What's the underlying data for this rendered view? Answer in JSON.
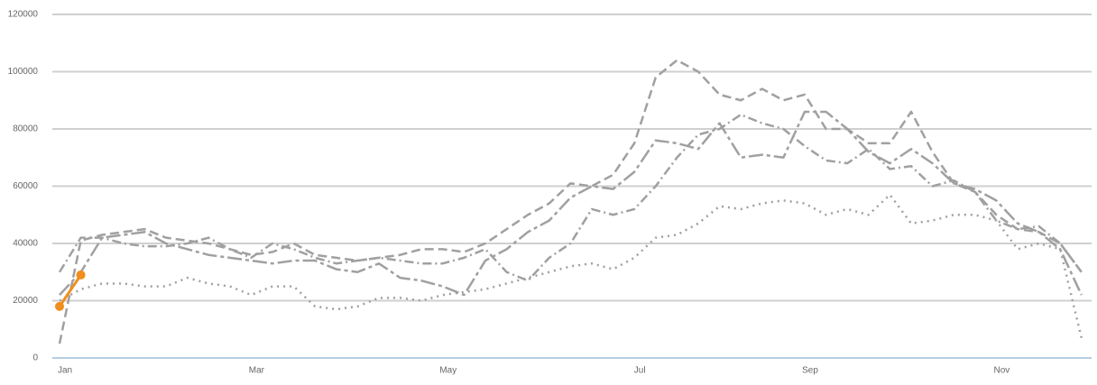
{
  "chart_data": {
    "type": "line",
    "categories": [
      "Jan",
      null,
      null,
      null,
      null,
      null,
      null,
      null,
      null,
      "Mar",
      null,
      null,
      null,
      null,
      null,
      null,
      null,
      null,
      "May",
      null,
      null,
      null,
      null,
      null,
      null,
      null,
      null,
      "Jul",
      null,
      null,
      null,
      null,
      null,
      null,
      null,
      "Sep",
      null,
      null,
      null,
      null,
      null,
      null,
      null,
      null,
      "Nov",
      null,
      null,
      null,
      null
    ],
    "series": [
      {
        "color": "#a0a0a0",
        "dash": "10 5",
        "values": [
          5000,
          41000,
          43000,
          44000,
          45000,
          42000,
          41000,
          40000,
          38000,
          36000,
          37000,
          40000,
          36000,
          35000,
          34000,
          35000,
          36000,
          38000,
          38000,
          37000,
          40000,
          45000,
          50000,
          54000,
          61000,
          60000,
          64000,
          75000,
          98000,
          104000,
          100000,
          92000,
          90000,
          94000,
          90000,
          92000,
          80000,
          80000,
          75000,
          75000,
          86000,
          72000,
          61000,
          58000,
          50000,
          45000,
          44000,
          40000,
          30000
        ]
      },
      {
        "color": "#a0a0a0",
        "dash": "10 4 2 4",
        "values": [
          30000,
          42000,
          42000,
          40000,
          39000,
          39000,
          40000,
          42000,
          38000,
          35000,
          40000,
          38000,
          35000,
          33000,
          34000,
          35000,
          34000,
          33000,
          33000,
          35000,
          38000,
          30000,
          27000,
          35000,
          40000,
          52000,
          50000,
          52000,
          60000,
          70000,
          78000,
          80000,
          85000,
          82000,
          80000,
          74000,
          69000,
          68000,
          73000,
          66000,
          67000,
          60000,
          62000,
          58000,
          48000,
          45000,
          46000,
          40000,
          30000
        ]
      },
      {
        "color": "#a0a0a0",
        "dash": "16 4 4 4",
        "values": [
          22000,
          30000,
          42000,
          43000,
          44000,
          40000,
          38000,
          36000,
          35000,
          34000,
          33000,
          34000,
          34000,
          31000,
          30000,
          33000,
          28000,
          27000,
          25000,
          22000,
          34000,
          38000,
          44000,
          48000,
          56000,
          60000,
          59000,
          65000,
          76000,
          75000,
          73000,
          82000,
          70000,
          71000,
          70000,
          86000,
          86000,
          80000,
          72000,
          68000,
          73000,
          68000,
          61000,
          59000,
          55000,
          47000,
          44000,
          38000,
          22000
        ]
      },
      {
        "color": "#a0a0a0",
        "dash": "2 5",
        "values": [
          20000,
          24000,
          26000,
          26000,
          25000,
          25000,
          28000,
          26000,
          25000,
          22000,
          25000,
          25000,
          18000,
          17000,
          18000,
          21000,
          21000,
          20000,
          22000,
          23000,
          24000,
          26000,
          28000,
          30000,
          32000,
          33000,
          31000,
          35000,
          42000,
          43000,
          47000,
          53000,
          52000,
          54000,
          55000,
          54000,
          50000,
          52000,
          50000,
          57000,
          47000,
          48000,
          50000,
          50000,
          48000,
          38000,
          40000,
          38000,
          7000
        ]
      },
      {
        "color": "#f28e1c",
        "markers": true,
        "values": [
          18000,
          29000,
          null,
          null,
          null,
          null,
          null,
          null,
          null,
          null,
          null,
          null,
          null,
          null,
          null,
          null,
          null,
          null,
          null,
          null,
          null,
          null,
          null,
          null,
          null,
          null,
          null,
          null,
          null,
          null,
          null,
          null,
          null,
          null,
          null,
          null,
          null,
          null,
          null,
          null,
          null,
          null,
          null,
          null,
          null,
          null,
          null,
          null,
          null
        ]
      }
    ],
    "ylim": [
      0,
      120000
    ],
    "yticks": [
      0,
      20000,
      40000,
      60000,
      80000,
      100000,
      120000
    ],
    "grid": true
  }
}
